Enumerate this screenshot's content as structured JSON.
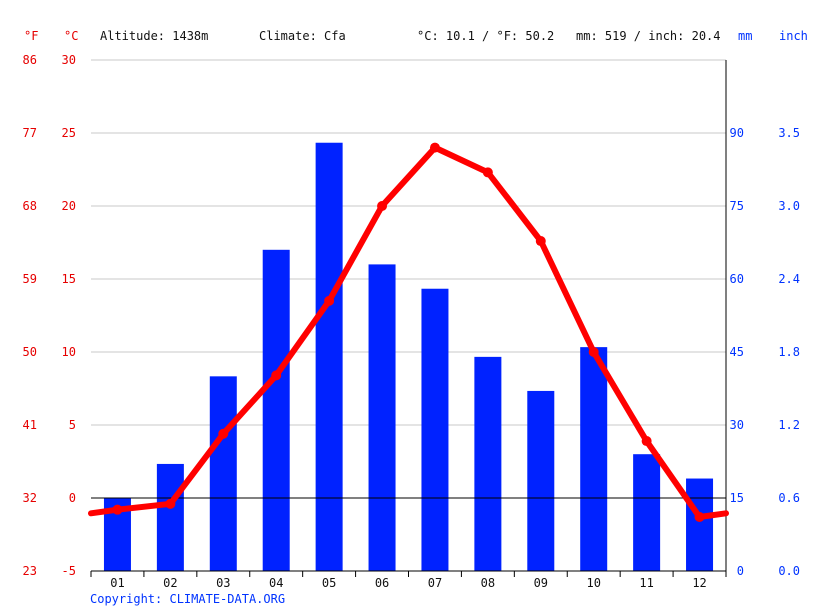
{
  "header": {
    "unit_f": "°F",
    "unit_c": "°C",
    "altitude": "Altitude: 1438m",
    "climate": "Climate: Cfa",
    "avg_temp": "°C: 10.1 / °F: 50.2",
    "precip_total": "mm: 519 / inch: 20.4",
    "unit_mm": "mm",
    "unit_inch": "inch"
  },
  "copyright": "Copyright: CLIMATE-DATA.ORG",
  "chart_data": {
    "type": "bar+line",
    "categories": [
      "01",
      "02",
      "03",
      "04",
      "05",
      "06",
      "07",
      "08",
      "09",
      "10",
      "11",
      "12"
    ],
    "series": [
      {
        "kind": "bar",
        "unit": "mm",
        "axis": "right",
        "color": "#0022ff",
        "values": [
          15,
          22,
          40,
          66,
          88,
          63,
          58,
          44,
          37,
          46,
          24,
          19
        ]
      },
      {
        "kind": "line",
        "unit": "°C",
        "axis": "left",
        "color": "#ff0000",
        "values": [
          -0.8,
          -0.4,
          4.4,
          8.4,
          13.5,
          20.0,
          24.0,
          22.3,
          17.6,
          10.0,
          3.9,
          -1.3
        ]
      }
    ],
    "left_axis_c": {
      "ylim": [
        -5,
        30
      ],
      "ticks": [
        "-5",
        "0",
        "5",
        "10",
        "15",
        "20",
        "25",
        "30"
      ]
    },
    "left_axis_f": {
      "ticks": [
        "23",
        "32",
        "41",
        "50",
        "59",
        "68",
        "77",
        "86"
      ]
    },
    "right_axis_mm": {
      "ylim": [
        0,
        105
      ],
      "ticks": [
        "0",
        "15",
        "30",
        "45",
        "60",
        "75",
        "90"
      ]
    },
    "right_axis_inch": {
      "ticks": [
        "0.0",
        "0.6",
        "1.2",
        "1.8",
        "2.4",
        "3.0",
        "3.5"
      ]
    },
    "grid": true,
    "colors": {
      "temperature": "#ff0000",
      "precipitation": "#0022ff",
      "label_red": "#e60000",
      "label_blue": "#0033ff"
    }
  }
}
